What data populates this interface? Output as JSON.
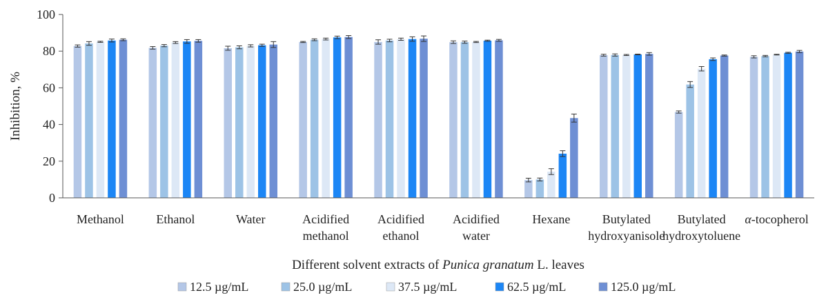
{
  "chart_data": {
    "type": "bar",
    "title": "",
    "xlabel_parts": [
      "Different solvent extracts of ",
      "Punica granatum",
      " L. leaves"
    ],
    "ylabel": "Inhibition, %",
    "ylim": [
      0,
      100
    ],
    "yticks": [
      0,
      20,
      40,
      60,
      80,
      100
    ],
    "grid": false,
    "legend_position": "bottom",
    "categories": [
      [
        "Methanol"
      ],
      [
        "Ethanol"
      ],
      [
        "Water"
      ],
      [
        "Acidified",
        "methanol"
      ],
      [
        "Acidified",
        "ethanol"
      ],
      [
        "Acidified",
        "water"
      ],
      [
        "Hexane"
      ],
      [
        "Butylated",
        "hydroxyanisole"
      ],
      [
        "Butylated",
        "hydroxytoluene"
      ],
      [
        "α",
        "-tocopherol"
      ]
    ],
    "series": [
      {
        "name": "12.5 µg/mL",
        "color": "#b4c7e7",
        "values": [
          82.8,
          81.8,
          81.6,
          85.0,
          85.0,
          84.9,
          9.7,
          77.8,
          46.8,
          76.9
        ],
        "errors": [
          0.6,
          0.7,
          1.1,
          0.3,
          1.2,
          0.7,
          1.0,
          0.5,
          0.6,
          0.6
        ]
      },
      {
        "name": "25.0 µg/mL",
        "color": "#9dc3e6",
        "values": [
          84.2,
          83.0,
          82.1,
          86.2,
          85.8,
          84.9,
          10.0,
          77.9,
          61.8,
          77.3
        ],
        "errors": [
          1.0,
          0.6,
          0.8,
          0.5,
          0.7,
          0.6,
          0.8,
          0.6,
          1.6,
          0.4
        ]
      },
      {
        "name": "37.5 µg/mL",
        "color": "#dde8f6",
        "values": [
          85.1,
          84.7,
          82.9,
          86.6,
          86.5,
          85.0,
          14.3,
          77.9,
          70.4,
          78.1
        ],
        "errors": [
          0.3,
          0.5,
          0.6,
          0.5,
          0.6,
          0.3,
          1.6,
          0.3,
          1.2,
          0.2
        ]
      },
      {
        "name": "62.5 µg/mL",
        "color": "#1c86f5",
        "values": [
          85.8,
          85.3,
          83.2,
          87.5,
          86.6,
          85.7,
          24.1,
          78.2,
          75.6,
          79.1
        ],
        "errors": [
          0.8,
          1.0,
          0.6,
          0.7,
          1.2,
          0.3,
          1.6,
          0.2,
          0.7,
          0.3
        ]
      },
      {
        "name": "125.0 µg/mL",
        "color": "#6e8fd4",
        "values": [
          86.2,
          85.6,
          83.6,
          87.7,
          86.8,
          85.9,
          43.5,
          78.5,
          77.6,
          79.8
        ],
        "errors": [
          0.5,
          0.7,
          1.6,
          0.8,
          1.5,
          0.5,
          2.2,
          0.7,
          0.3,
          0.6
        ]
      }
    ]
  }
}
